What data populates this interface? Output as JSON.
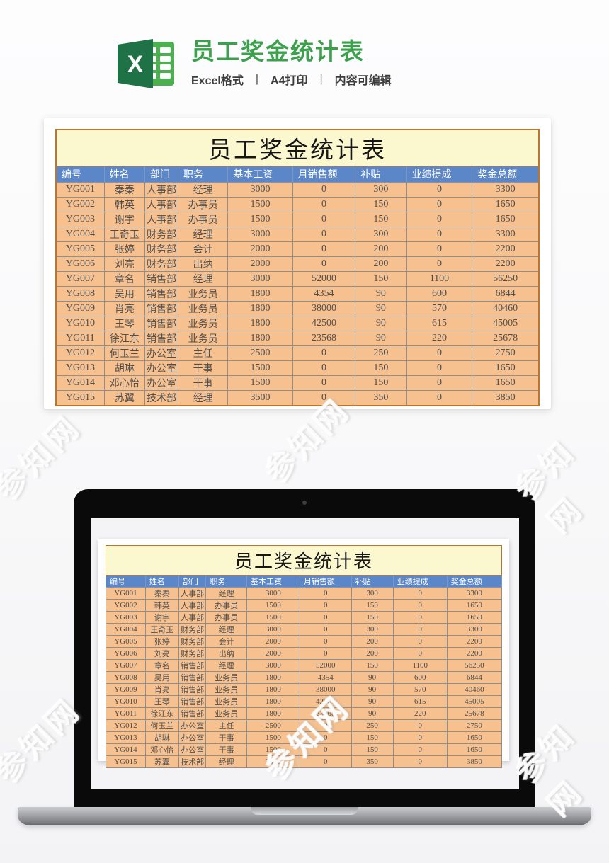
{
  "page": {
    "title": "员工奖金统计表",
    "title_color": "#3ca04c",
    "subtitle_parts": [
      "Excel格式",
      "A4打印",
      "内容可编辑"
    ],
    "subtitle_separator": "|"
  },
  "watermark": {
    "text": "参知网"
  },
  "table": {
    "title": "员工奖金统计表",
    "headers": [
      "编号",
      "姓名",
      "部门",
      "职务",
      "基本工资",
      "月销售额",
      "补贴",
      "业绩提成",
      "奖金总额"
    ],
    "rows": [
      [
        "YG001",
        "秦秦",
        "人事部",
        "经理",
        "3000",
        "0",
        "300",
        "0",
        "3300"
      ],
      [
        "YG002",
        "韩英",
        "人事部",
        "办事员",
        "1500",
        "0",
        "150",
        "0",
        "1650"
      ],
      [
        "YG003",
        "谢宇",
        "人事部",
        "办事员",
        "1500",
        "0",
        "150",
        "0",
        "1650"
      ],
      [
        "YG004",
        "王奇玉",
        "财务部",
        "经理",
        "3000",
        "0",
        "300",
        "0",
        "3300"
      ],
      [
        "YG005",
        "张婷",
        "财务部",
        "会计",
        "2000",
        "0",
        "200",
        "0",
        "2200"
      ],
      [
        "YG006",
        "刘亮",
        "财务部",
        "出纳",
        "2000",
        "0",
        "200",
        "0",
        "2200"
      ],
      [
        "YG007",
        "章名",
        "销售部",
        "经理",
        "3000",
        "52000",
        "150",
        "1100",
        "56250"
      ],
      [
        "YG008",
        "吴用",
        "销售部",
        "业务员",
        "1800",
        "4354",
        "90",
        "600",
        "6844"
      ],
      [
        "YG009",
        "肖亮",
        "销售部",
        "业务员",
        "1800",
        "38000",
        "90",
        "570",
        "40460"
      ],
      [
        "YG010",
        "王琴",
        "销售部",
        "业务员",
        "1800",
        "42500",
        "90",
        "615",
        "45005"
      ],
      [
        "YG011",
        "徐江东",
        "销售部",
        "业务员",
        "1800",
        "23568",
        "90",
        "220",
        "25678"
      ],
      [
        "YG012",
        "何玉兰",
        "办公室",
        "主任",
        "2500",
        "0",
        "250",
        "0",
        "2750"
      ],
      [
        "YG013",
        "胡琳",
        "办公室",
        "干事",
        "1500",
        "0",
        "150",
        "0",
        "1650"
      ],
      [
        "YG014",
        "邓心怡",
        "办公室",
        "干事",
        "1500",
        "0",
        "150",
        "0",
        "1650"
      ],
      [
        "YG015",
        "苏翼",
        "技术部",
        "经理",
        "3500",
        "0",
        "350",
        "0",
        "3850"
      ]
    ],
    "colors": {
      "title_bg": "#fbf8d0",
      "header_bg": "#5b86c8",
      "header_text": "#ffffff",
      "row_bg": "#f6c18f",
      "cell_text": "#4e4e50",
      "grid_line": "#8e8e8e",
      "outer_border": "#b8762f"
    }
  },
  "icons": {
    "excel_icon": "excel-logo",
    "excel_dark_green": "#1e7245",
    "excel_light_green": "#4caf50"
  }
}
